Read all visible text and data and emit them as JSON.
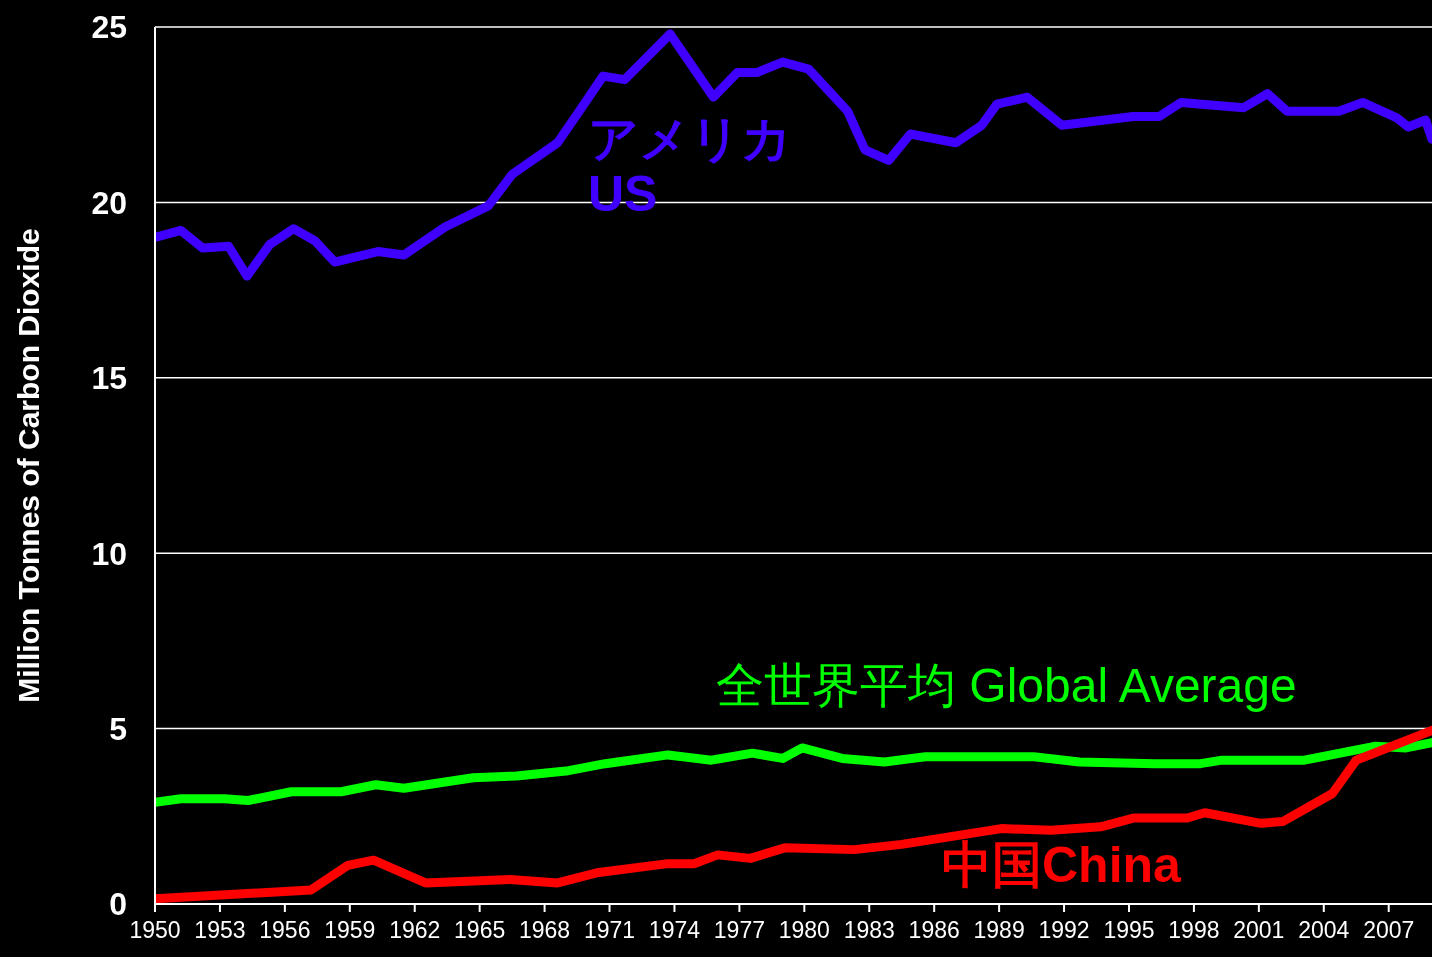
{
  "chart_data": {
    "type": "line",
    "ylabel": "Million Tonnes of Carbon Dioxide",
    "xlim": [
      1950,
      2009
    ],
    "xticks": [
      1950,
      1953,
      1956,
      1959,
      1962,
      1965,
      1968,
      1971,
      1974,
      1977,
      1980,
      1983,
      1986,
      1989,
      1992,
      1995,
      1998,
      2001,
      2004,
      2007
    ],
    "ylim": [
      0,
      25
    ],
    "yticks": [
      0,
      5,
      10,
      15,
      20,
      25
    ],
    "grid": "y",
    "marker": "none",
    "line_style": "solid",
    "series": [
      {
        "name": "アメリカ US",
        "color": "#4000ff",
        "x": [
          1950,
          1951.2,
          1952.2,
          1953.4,
          1954.25,
          1955.3,
          1956.4,
          1957.4,
          1958.3,
          1960.3,
          1961.5,
          1963.4,
          1965.4,
          1966.5,
          1968.6,
          1969.6,
          1970.7,
          1971.7,
          1973.8,
          1975.8,
          1976.9,
          1977.8,
          1979,
          1980.2,
          1982,
          1982.8,
          1983.9,
          1984.9,
          1987,
          1988.2,
          1988.9,
          1990.3,
          1991.9,
          1995.2,
          1996.4,
          1997.4,
          2000.3,
          2001.4,
          2002.3,
          2004.7,
          2005.8,
          2007.4,
          2007.9,
          2008.7,
          2009
        ],
        "values": [
          19.0,
          19.2,
          18.7,
          18.75,
          17.9,
          18.8,
          19.25,
          18.9,
          18.3,
          18.6,
          18.5,
          19.3,
          19.9,
          20.8,
          21.7,
          22.6,
          23.6,
          23.5,
          24.8,
          23.0,
          23.7,
          23.7,
          24.0,
          23.8,
          22.6,
          21.5,
          21.2,
          21.95,
          21.7,
          22.2,
          22.8,
          23.0,
          22.2,
          22.45,
          22.45,
          22.85,
          22.7,
          23.1,
          22.6,
          22.6,
          22.85,
          22.4,
          22.15,
          22.35,
          21.8
        ]
      },
      {
        "name": "全世界平均 Global Average",
        "color": "#00ff00",
        "x": [
          1950,
          1951.2,
          1953.2,
          1954.3,
          1956.3,
          1958.6,
          1960.2,
          1961.5,
          1964.7,
          1966.7,
          1969.1,
          1970.8,
          1973.7,
          1975.7,
          1977.6,
          1979,
          1979.9,
          1981.75,
          1983.7,
          1985.6,
          1990.6,
          1992.7,
          1996.2,
          1998.3,
          1999.3,
          2003.1,
          2006.4,
          2007.8,
          2009
        ],
        "values": [
          2.9,
          3.0,
          3.0,
          2.95,
          3.2,
          3.2,
          3.4,
          3.3,
          3.6,
          3.65,
          3.8,
          4.0,
          4.25,
          4.1,
          4.3,
          4.15,
          4.45,
          4.15,
          4.05,
          4.2,
          4.2,
          4.05,
          4.0,
          4.0,
          4.1,
          4.1,
          4.5,
          4.45,
          4.6
        ]
      },
      {
        "name": "中国China",
        "color": "#ff0000",
        "x": [
          1950,
          1957.2,
          1958.9,
          1960.1,
          1962.5,
          1966.4,
          1968.6,
          1970.5,
          1973.7,
          1974.9,
          1976,
          1977.5,
          1979.1,
          1982.3,
          1984.5,
          1989.1,
          1991.4,
          1993.7,
          1995.2,
          1997.7,
          1998.5,
          2001.1,
          2002.1,
          2004.4,
          2005.5,
          2009
        ],
        "values": [
          0.15,
          0.4,
          1.1,
          1.25,
          0.6,
          0.7,
          0.6,
          0.9,
          1.15,
          1.15,
          1.4,
          1.3,
          1.6,
          1.55,
          1.7,
          2.15,
          2.1,
          2.2,
          2.45,
          2.45,
          2.6,
          2.3,
          2.35,
          3.15,
          4.1,
          4.95
        ]
      }
    ]
  }
}
